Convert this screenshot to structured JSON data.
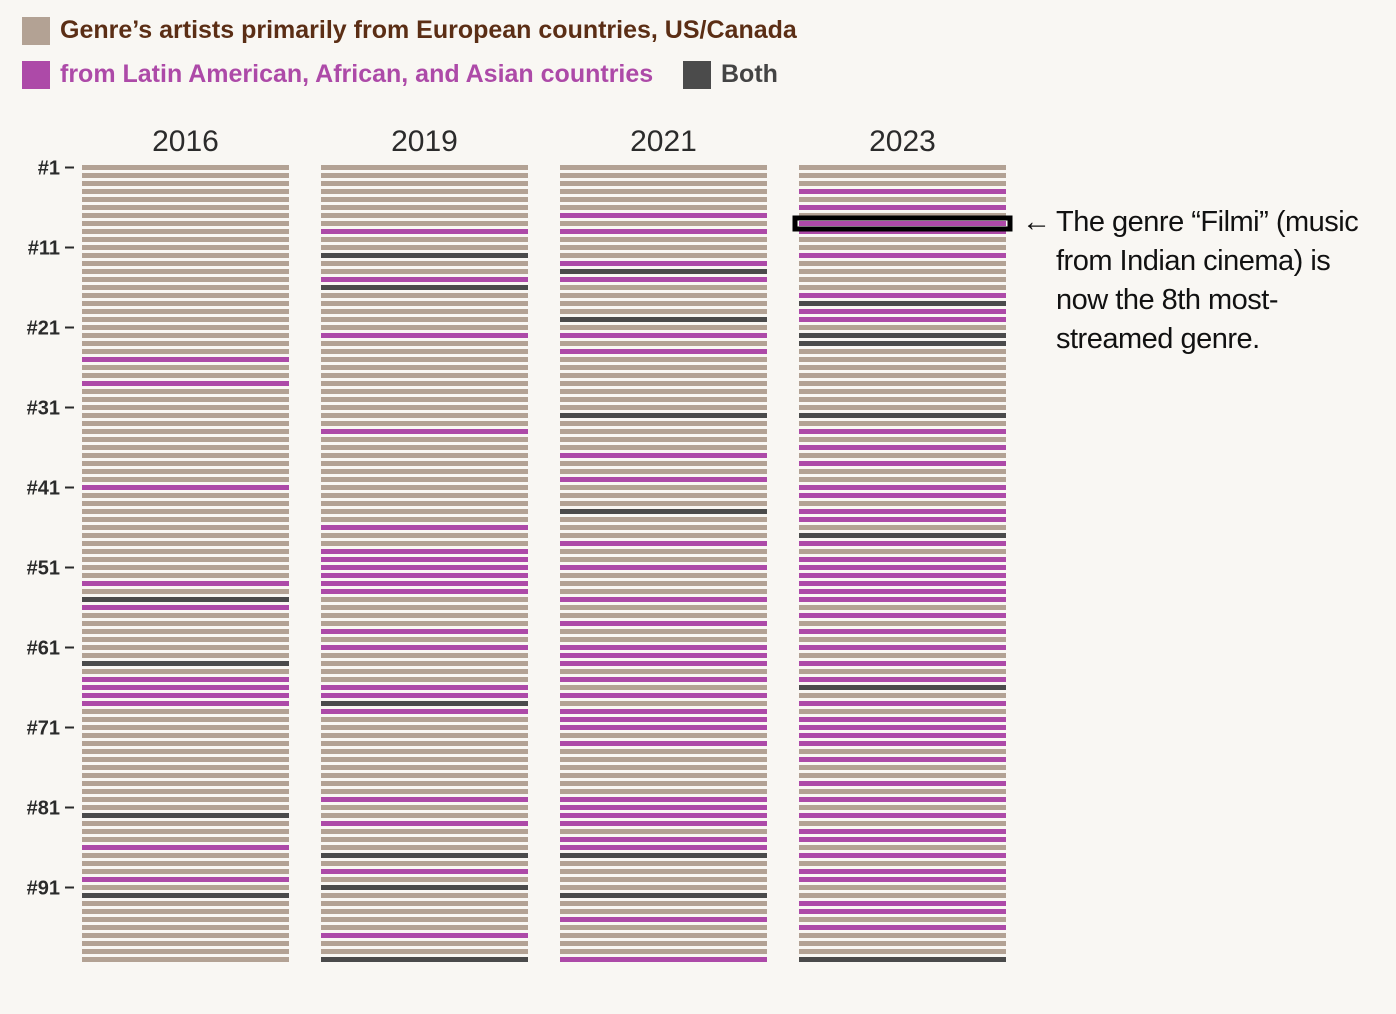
{
  "legend": {
    "west_label": "Genre’s artists primarily from European countries, US/Canada",
    "global_label": "from Latin American, African, and Asian countries",
    "both_label": "Both"
  },
  "annotation": {
    "arrow": "←",
    "text": "The genre “Filmi” (music from Indian cinema) is now the 8th most-streamed genre."
  },
  "colors": {
    "west": "#b3a294",
    "global": "#ad4aa8",
    "both": "#4b4b4b",
    "background": "#f9f7f3",
    "west_text": "#5b2e15",
    "global_text": "#ad4aa8",
    "both_text": "#444444"
  },
  "chart_data": {
    "type": "heatmap",
    "rank_count": 100,
    "y_ticks": [
      "#1",
      "#11",
      "#21",
      "#31",
      "#41",
      "#51",
      "#61",
      "#71",
      "#81",
      "#91"
    ],
    "categories_key": {
      "W": "European countries, US/Canada",
      "G": "Latin American, African, and Asian countries",
      "B": "Both"
    },
    "years": [
      {
        "year": "2016",
        "global_ranks": [
          25,
          28,
          41,
          53,
          56,
          65,
          66,
          67,
          68,
          86,
          90
        ],
        "both_ranks": [
          55,
          63,
          82,
          92
        ]
      },
      {
        "year": "2019",
        "global_ranks": [
          9,
          15,
          22,
          34,
          46,
          49,
          50,
          51,
          52,
          53,
          54,
          59,
          61,
          66,
          67,
          69,
          80,
          83,
          89,
          97
        ],
        "both_ranks": [
          12,
          16,
          68,
          87,
          91,
          100
        ]
      },
      {
        "year": "2021",
        "global_ranks": [
          7,
          9,
          13,
          15,
          22,
          24,
          37,
          40,
          48,
          51,
          55,
          58,
          61,
          62,
          63,
          65,
          67,
          69,
          70,
          71,
          73,
          80,
          81,
          82,
          83,
          85,
          86,
          95,
          100
        ],
        "both_ranks": [
          14,
          20,
          32,
          44,
          87,
          92
        ]
      },
      {
        "year": "2023",
        "global_ranks": [
          4,
          6,
          8,
          9,
          12,
          17,
          19,
          20,
          34,
          36,
          38,
          41,
          42,
          44,
          45,
          48,
          50,
          51,
          52,
          53,
          54,
          55,
          57,
          59,
          61,
          63,
          65,
          68,
          70,
          71,
          72,
          73,
          75,
          78,
          80,
          82,
          84,
          85,
          87,
          89,
          90,
          93,
          94,
          96
        ],
        "both_ranks": [
          18,
          22,
          23,
          32,
          47,
          66,
          100
        ],
        "highlighted_rank": 8
      }
    ]
  }
}
